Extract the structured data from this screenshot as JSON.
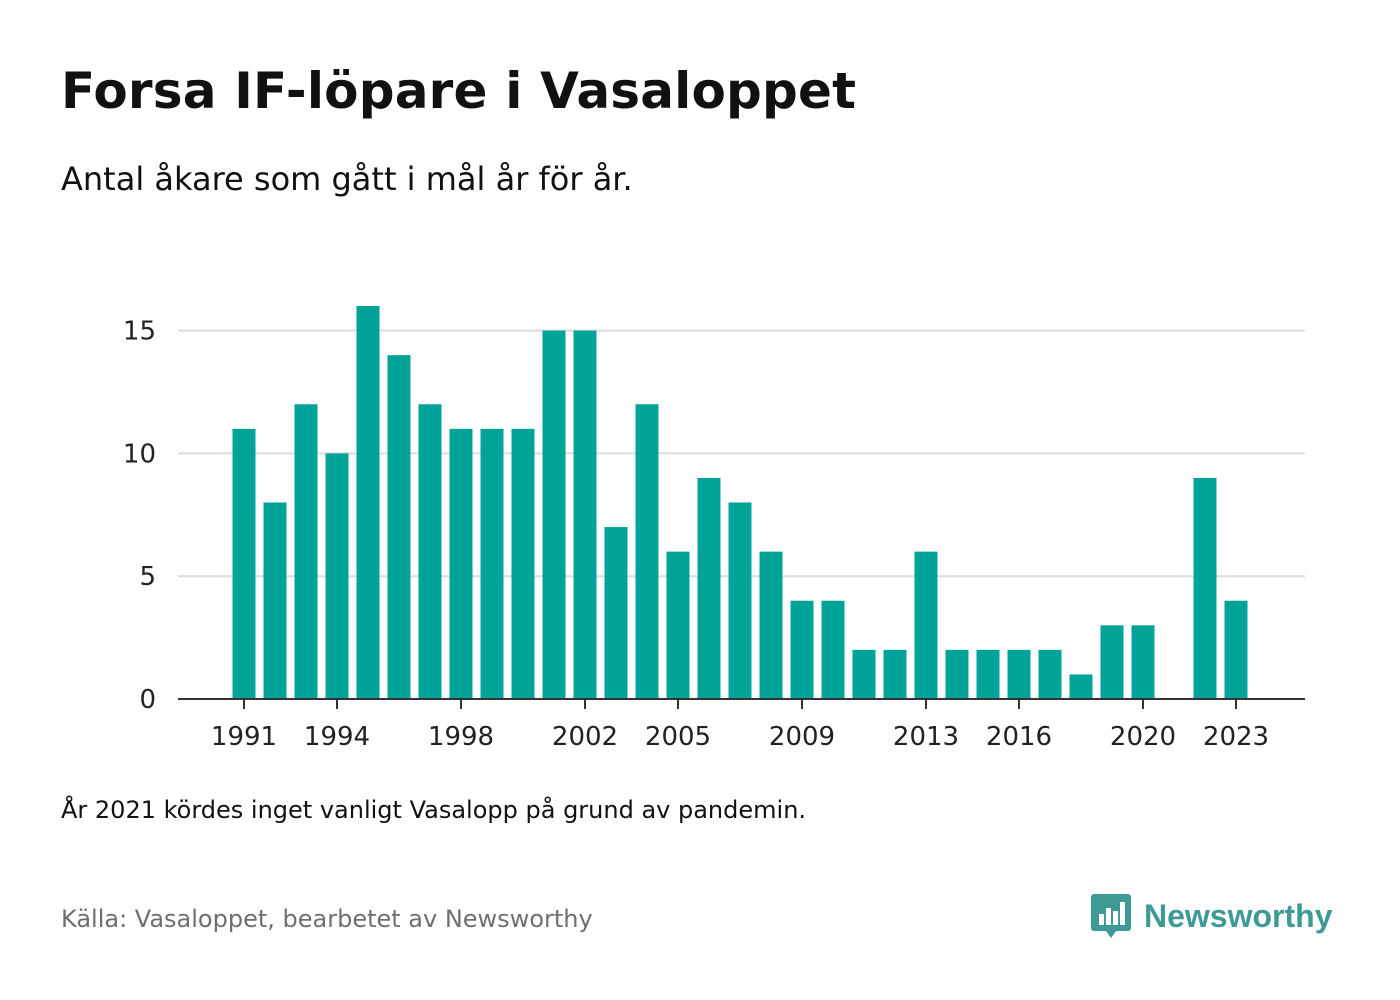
{
  "title": "Forsa IF-löpare i Vasaloppet",
  "subtitle": "Antal åkare som gått i mål år för år.",
  "note": "År 2021 kördes inget vanligt Vasalopp på grund av pandemin.",
  "source": "Källa: Vasaloppet, bearbetet av Newsworthy",
  "brand": {
    "name": "Newsworthy",
    "icon": "newsworthy-logo-icon",
    "color": "#3d9a95"
  },
  "chart_data": {
    "type": "bar",
    "title": "Forsa IF-löpare i Vasaloppet",
    "subtitle": "Antal åkare som gått i mål år för år.",
    "xlabel": "",
    "ylabel": "",
    "bar_color": "#00a398",
    "grid": true,
    "ylim": [
      0,
      16
    ],
    "yticks": [
      0,
      5,
      10,
      15
    ],
    "xticks": [
      1991,
      1994,
      1998,
      2002,
      2005,
      2009,
      2013,
      2016,
      2020,
      2023
    ],
    "categories": [
      1991,
      1992,
      1993,
      1994,
      1995,
      1996,
      1997,
      1998,
      1999,
      2000,
      2001,
      2002,
      2003,
      2004,
      2005,
      2006,
      2007,
      2008,
      2009,
      2010,
      2011,
      2012,
      2013,
      2014,
      2015,
      2016,
      2017,
      2018,
      2019,
      2020,
      2021,
      2022,
      2023
    ],
    "values": [
      11,
      8,
      12,
      10,
      16,
      14,
      12,
      11,
      11,
      11,
      15,
      15,
      7,
      12,
      6,
      9,
      8,
      6,
      4,
      4,
      2,
      2,
      6,
      2,
      2,
      2,
      2,
      1,
      3,
      3,
      0,
      9,
      4
    ]
  }
}
